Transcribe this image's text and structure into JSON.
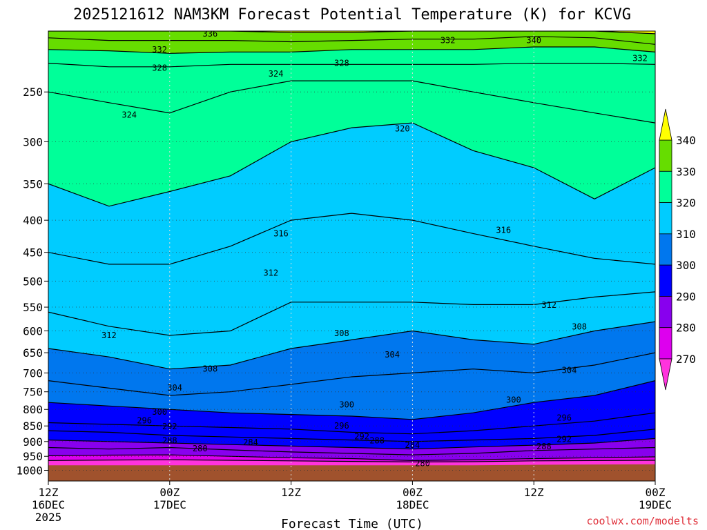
{
  "chart_data": {
    "type": "heatmap",
    "title": "2025121612 NAM3KM Forecast Potential Temperature (K) for KCVG",
    "xlabel": "Forecast Time (UTC)",
    "ylabel": "",
    "credit": "coolwx.com/modelts",
    "y_scale": "log-pressure",
    "y_reversed": true,
    "ylim": [
      1040,
      200
    ],
    "xlim": [
      0,
      60
    ],
    "x_unit": "hours since 2025-12-16 12Z",
    "grid": "dotted",
    "y_ticks": [
      250,
      300,
      350,
      400,
      450,
      500,
      550,
      600,
      650,
      700,
      750,
      800,
      850,
      900,
      950,
      1000
    ],
    "x_ticks": [
      {
        "x": 0,
        "line1": "12Z",
        "line2": "16DEC",
        "line3": "2025"
      },
      {
        "x": 12,
        "line1": "00Z",
        "line2": "17DEC",
        "line3": ""
      },
      {
        "x": 24,
        "line1": "12Z",
        "line2": "",
        "line3": ""
      },
      {
        "x": 36,
        "line1": "00Z",
        "line2": "18DEC",
        "line3": ""
      },
      {
        "x": 48,
        "line1": "12Z",
        "line2": "",
        "line3": ""
      },
      {
        "x": 60,
        "line1": "00Z",
        "line2": "19DEC",
        "line3": ""
      }
    ],
    "x": [
      0,
      6,
      12,
      18,
      24,
      30,
      36,
      42,
      48,
      54,
      60
    ],
    "surface_pressure": [
      982,
      982,
      982,
      982,
      982,
      982,
      982,
      982,
      980,
      979,
      978
    ],
    "isentrope_pressures": [
      {
        "theta": 276,
        "p": [
          965,
          963,
          962,
          964,
          966,
          968,
          970,
          969,
          966,
          965,
          964
        ]
      },
      {
        "theta": 280,
        "p": [
          948,
          946,
          945,
          950,
          955,
          958,
          965,
          962,
          958,
          955,
          952
        ]
      },
      {
        "theta": 284,
        "p": [
          920,
          925,
          920,
          928,
          935,
          940,
          945,
          940,
          930,
          925,
          920
        ]
      },
      {
        "theta": 288,
        "p": [
          895,
          900,
          905,
          910,
          915,
          920,
          925,
          918,
          912,
          905,
          890
        ]
      },
      {
        "theta": 292,
        "p": [
          865,
          870,
          880,
          885,
          890,
          895,
          900,
          895,
          890,
          880,
          860
        ]
      },
      {
        "theta": 296,
        "p": [
          840,
          845,
          850,
          855,
          860,
          870,
          875,
          865,
          850,
          835,
          810
        ]
      },
      {
        "theta": 300,
        "p": [
          780,
          790,
          800,
          810,
          815,
          820,
          830,
          810,
          780,
          760,
          720
        ]
      },
      {
        "theta": 304,
        "p": [
          720,
          740,
          760,
          750,
          730,
          710,
          700,
          690,
          700,
          680,
          650
        ]
      },
      {
        "theta": 308,
        "p": [
          640,
          660,
          690,
          680,
          640,
          620,
          600,
          620,
          630,
          600,
          580
        ]
      },
      {
        "theta": 312,
        "p": [
          560,
          590,
          610,
          600,
          540,
          540,
          540,
          545,
          545,
          530,
          520
        ]
      },
      {
        "theta": 316,
        "p": [
          450,
          470,
          470,
          440,
          400,
          390,
          400,
          420,
          440,
          460,
          470
        ]
      },
      {
        "theta": 320,
        "p": [
          350,
          380,
          360,
          340,
          300,
          285,
          280,
          310,
          330,
          370,
          330
        ]
      },
      {
        "theta": 324,
        "p": [
          250,
          260,
          270,
          250,
          240,
          240,
          240,
          250,
          260,
          270,
          280
        ]
      },
      {
        "theta": 328,
        "p": [
          225,
          228,
          228,
          226,
          226,
          226,
          226,
          226,
          225,
          225,
          226
        ]
      },
      {
        "theta": 332,
        "p": [
          214,
          215,
          217,
          216,
          216,
          214,
          214,
          214,
          212,
          212,
          216
        ]
      },
      {
        "theta": 336,
        "p": [
          205,
          207,
          207,
          207,
          208,
          207,
          206,
          206,
          204,
          205,
          210
        ]
      },
      {
        "theta": 340,
        "p": [
          200,
          200,
          200,
          200,
          201,
          201,
          200,
          200,
          200,
          200,
          202
        ]
      }
    ],
    "contour_labels": [
      {
        "text": "336",
        "x": 16.0,
        "p": 202
      },
      {
        "text": "332",
        "x": 11.0,
        "p": 214
      },
      {
        "text": "332",
        "x": 39.5,
        "p": 207
      },
      {
        "text": "340",
        "x": 48.0,
        "p": 207
      },
      {
        "text": "332",
        "x": 58.5,
        "p": 221
      },
      {
        "text": "328",
        "x": 11.0,
        "p": 229
      },
      {
        "text": "328",
        "x": 29.0,
        "p": 225
      },
      {
        "text": "324",
        "x": 22.5,
        "p": 234
      },
      {
        "text": "324",
        "x": 8.0,
        "p": 272
      },
      {
        "text": "320",
        "x": 35.0,
        "p": 286
      },
      {
        "text": "316",
        "x": 23.0,
        "p": 420
      },
      {
        "text": "316",
        "x": 45.0,
        "p": 415
      },
      {
        "text": "312",
        "x": 22.0,
        "p": 485
      },
      {
        "text": "312",
        "x": 49.5,
        "p": 546
      },
      {
        "text": "312",
        "x": 6.0,
        "p": 610
      },
      {
        "text": "308",
        "x": 52.5,
        "p": 591
      },
      {
        "text": "308",
        "x": 29.0,
        "p": 605
      },
      {
        "text": "308",
        "x": 16.0,
        "p": 690
      },
      {
        "text": "304",
        "x": 34.0,
        "p": 655
      },
      {
        "text": "304",
        "x": 51.5,
        "p": 693
      },
      {
        "text": "304",
        "x": 12.5,
        "p": 739
      },
      {
        "text": "300",
        "x": 29.5,
        "p": 786
      },
      {
        "text": "300",
        "x": 46.0,
        "p": 773
      },
      {
        "text": "300",
        "x": 11.0,
        "p": 808
      },
      {
        "text": "296",
        "x": 9.5,
        "p": 834
      },
      {
        "text": "296",
        "x": 29.0,
        "p": 850
      },
      {
        "text": "296",
        "x": 51.0,
        "p": 825
      },
      {
        "text": "292",
        "x": 12.0,
        "p": 852
      },
      {
        "text": "292",
        "x": 31.0,
        "p": 883
      },
      {
        "text": "292",
        "x": 51.0,
        "p": 892
      },
      {
        "text": "288",
        "x": 32.5,
        "p": 897
      },
      {
        "text": "288",
        "x": 12.0,
        "p": 897
      },
      {
        "text": "288",
        "x": 49.0,
        "p": 917
      },
      {
        "text": "284",
        "x": 20.0,
        "p": 903
      },
      {
        "text": "284",
        "x": 36.0,
        "p": 912
      },
      {
        "text": "280",
        "x": 15.0,
        "p": 923
      },
      {
        "text": "280",
        "x": 37.0,
        "p": 975
      }
    ],
    "colorbar": {
      "labels": [
        340,
        330,
        320,
        310,
        300,
        290,
        280,
        270
      ],
      "bands": [
        {
          "lo": 330,
          "hi": 340,
          "color": "#66dd00"
        },
        {
          "lo": 320,
          "hi": 330,
          "color": "#00ff99"
        },
        {
          "lo": 310,
          "hi": 320,
          "color": "#00ccff"
        },
        {
          "lo": 300,
          "hi": 310,
          "color": "#0077ee"
        },
        {
          "lo": 290,
          "hi": 300,
          "color": "#0000ff"
        },
        {
          "lo": 280,
          "hi": 290,
          "color": "#8800ee"
        },
        {
          "lo": 270,
          "hi": 280,
          "color": "#dd00ee"
        }
      ],
      "over_color": "#ffff00",
      "under_color": "#ff33dd"
    },
    "fill_colors": [
      {
        "theta": 276,
        "color": "#ff33dd"
      },
      {
        "theta": 280,
        "color": "#dd00ee"
      },
      {
        "theta": 284,
        "color": "#8800ee"
      },
      {
        "theta": 288,
        "color": "#8800ee"
      },
      {
        "theta": 292,
        "color": "#0000ff"
      },
      {
        "theta": 296,
        "color": "#0000ff"
      },
      {
        "theta": 300,
        "color": "#0000ff"
      },
      {
        "theta": 304,
        "color": "#0077ee"
      },
      {
        "theta": 308,
        "color": "#0077ee"
      },
      {
        "theta": 312,
        "color": "#00ccff"
      },
      {
        "theta": 316,
        "color": "#00ccff"
      },
      {
        "theta": 320,
        "color": "#00ccff"
      },
      {
        "theta": 324,
        "color": "#00ff99"
      },
      {
        "theta": 328,
        "color": "#00ff99"
      },
      {
        "theta": 332,
        "color": "#00ff99"
      },
      {
        "theta": 336,
        "color": "#66dd00"
      },
      {
        "theta": 340,
        "color": "#66dd00"
      }
    ],
    "top_fill_color": "#ffff00",
    "ground_color": "#a0522d",
    "line_color": "#000000"
  }
}
